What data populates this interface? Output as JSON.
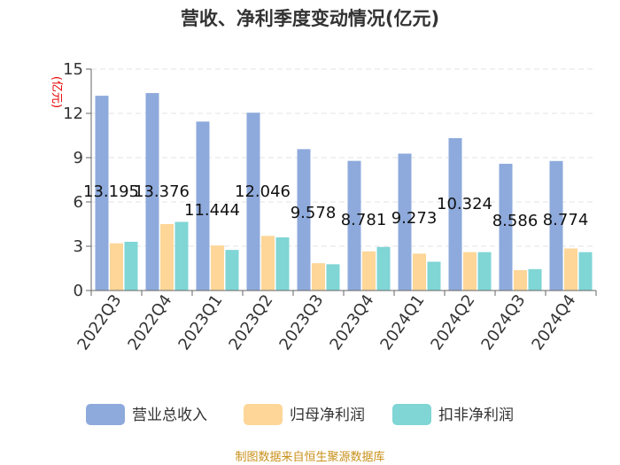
{
  "chart_data": {
    "type": "bar",
    "title": "营收、净利季度变动情况(亿元)",
    "ylabel": "(亿元)",
    "xlabel": "",
    "ylim": [
      0,
      15
    ],
    "yticks": [
      0,
      3,
      6,
      9,
      12,
      15
    ],
    "grid": true,
    "legend_position": "bottom",
    "categories": [
      "2022Q3",
      "2022Q4",
      "2023Q1",
      "2023Q2",
      "2023Q3",
      "2023Q4",
      "2024Q1",
      "2024Q2",
      "2024Q3",
      "2024Q4"
    ],
    "series": [
      {
        "name": "营业总收入",
        "color": "#8eaadc",
        "values": [
          13.195,
          13.376,
          11.444,
          12.046,
          9.578,
          8.781,
          9.273,
          10.324,
          8.586,
          8.774
        ],
        "labels": [
          "13.195",
          "13.376",
          "11.444",
          "12.046",
          "9.578",
          "8.781",
          "9.273",
          "10.324",
          "8.586",
          "8.774"
        ]
      },
      {
        "name": "归母净利润",
        "color": "#fdd698",
        "values": [
          3.2,
          4.5,
          3.05,
          3.7,
          1.85,
          2.65,
          2.5,
          2.6,
          1.38,
          2.85
        ]
      },
      {
        "name": "扣非净利润",
        "color": "#80d5d5",
        "values": [
          3.3,
          4.65,
          2.75,
          3.6,
          1.78,
          2.95,
          1.95,
          2.6,
          1.45,
          2.6
        ]
      }
    ],
    "source": "制图数据来自恒生聚源数据库"
  }
}
